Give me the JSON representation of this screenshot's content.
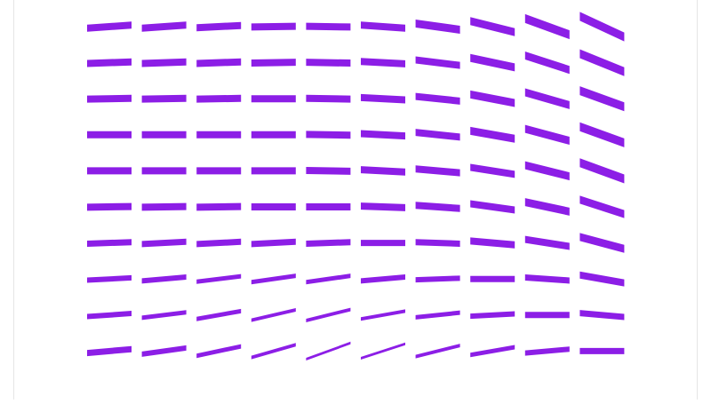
{
  "chart_data": {
    "type": "quiver",
    "color": "#8c1ee6",
    "angles": [
      [
        -4,
        -4,
        -3,
        -1,
        1,
        4,
        8,
        14,
        20,
        25
      ],
      [
        -2,
        -2,
        -2,
        -1,
        1,
        3,
        7,
        12,
        18,
        22
      ],
      [
        -1,
        -1,
        -1,
        0,
        1,
        3,
        6,
        11,
        16,
        20
      ],
      [
        0,
        0,
        0,
        0,
        1,
        3,
        6,
        10,
        15,
        20
      ],
      [
        0,
        0,
        0,
        0,
        1,
        3,
        5,
        9,
        14,
        20
      ],
      [
        -1,
        -1,
        -1,
        0,
        0,
        2,
        4,
        8,
        12,
        18
      ],
      [
        -2,
        -3,
        -3,
        -3,
        -2,
        0,
        2,
        5,
        9,
        15
      ],
      [
        -3,
        -5,
        -7,
        -8,
        -8,
        -5,
        -2,
        0,
        4,
        10
      ],
      [
        -4,
        -7,
        -10,
        -13,
        -14,
        -10,
        -6,
        -3,
        0,
        5
      ],
      [
        -5,
        -8,
        -12,
        -16,
        -20,
        -18,
        -14,
        -10,
        -5,
        0
      ]
    ],
    "thickness": [
      [
        8,
        8,
        8,
        8,
        8,
        8,
        9,
        9,
        10,
        10
      ],
      [
        8,
        8,
        8,
        8,
        8,
        8,
        8,
        9,
        9,
        10
      ],
      [
        8,
        8,
        8,
        8,
        8,
        8,
        8,
        9,
        9,
        10
      ],
      [
        8,
        8,
        8,
        8,
        8,
        8,
        8,
        9,
        9,
        10
      ],
      [
        8,
        8,
        8,
        8,
        8,
        8,
        8,
        8,
        9,
        10
      ],
      [
        8,
        8,
        8,
        8,
        8,
        8,
        8,
        8,
        9,
        9
      ],
      [
        7,
        7,
        7,
        7,
        7,
        7,
        7,
        8,
        8,
        9
      ],
      [
        6,
        6,
        5,
        5,
        5,
        6,
        6,
        7,
        7,
        8
      ],
      [
        6,
        5,
        5,
        4,
        4,
        4,
        5,
        6,
        7,
        7
      ],
      [
        7,
        6,
        5,
        4,
        3,
        3,
        4,
        5,
        6,
        7
      ]
    ]
  }
}
